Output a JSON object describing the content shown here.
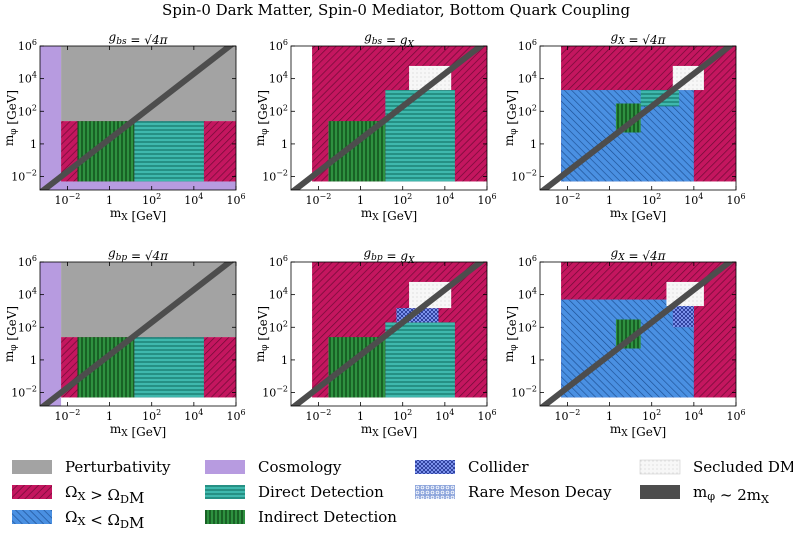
{
  "figure_title": "Spin-0 Dark Matter, Spin-0 Mediator, Bottom Quark Coupling",
  "colors": {
    "perturbativity": "#a3a3a3",
    "overabundant": "#c4165f",
    "overabundant_hatch": "#6e0a35",
    "underabundant": "#4a90e2",
    "underabundant_hatch": "#1d4f93",
    "cosmology": "#b79be0",
    "direct_detection": "#3fb8ad",
    "direct_detection_hatch": "#147568",
    "indirect_detection": "#2e9140",
    "indirect_detection_hatch": "#0e4d19",
    "collider": "#1c2e8c",
    "rare_meson": "#8ea6dc",
    "secluded": "#f4f4f4",
    "diagonal_line": "#4d4d4d"
  },
  "chart_data": [
    {
      "type": "area",
      "row": "top",
      "panel": 1,
      "title": "g_{bs} = √4π",
      "xlabel": "m_X [GeV]",
      "ylabel": "m_φ [GeV]",
      "xscale": "log",
      "yscale": "log",
      "xlim": [
        0.0005,
        1000000
      ],
      "ylim": [
        0.0015,
        1000000
      ],
      "x_ticks": [
        "10^-2",
        "1",
        "10^2",
        "10^4",
        "10^6"
      ],
      "y_ticks": [
        "10^-2",
        "1",
        "10^2",
        "10^4",
        "10^6"
      ],
      "regions": [
        {
          "name": "Perturbativity",
          "x_range": [
            0.005,
            1000000
          ],
          "y_range": [
            25,
            1000000
          ]
        },
        {
          "name": "Cosmology",
          "x_range": [
            0.0005,
            0.005
          ],
          "y_range": [
            0.0015,
            1000000
          ]
        },
        {
          "name": "Cosmology",
          "x_range": [
            0.0005,
            1000000
          ],
          "y_range": [
            0.0015,
            0.005
          ]
        },
        {
          "name": "Ω_X > Ω_DM",
          "x_range": [
            0.005,
            1000000
          ],
          "y_range": [
            0.005,
            25
          ]
        },
        {
          "name": "Indirect Detection",
          "x_range": [
            0.03,
            15
          ],
          "y_range": [
            0.005,
            25
          ]
        },
        {
          "name": "Direct Detection",
          "x_range": [
            15,
            30000
          ],
          "y_range": [
            0.005,
            25
          ]
        }
      ],
      "diagonal": "m_φ ~ 2m_X"
    },
    {
      "type": "area",
      "row": "top",
      "panel": 2,
      "title": "g_{bs} = g_X",
      "xlabel": "m_X [GeV]",
      "ylabel": "m_φ [GeV]",
      "xscale": "log",
      "yscale": "log",
      "xlim": [
        0.0005,
        1000000
      ],
      "ylim": [
        0.0015,
        1000000
      ],
      "x_ticks": [
        "10^-2",
        "1",
        "10^2",
        "10^4",
        "10^6"
      ],
      "y_ticks": [
        "10^-2",
        "1",
        "10^2",
        "10^4",
        "10^6"
      ],
      "regions": [
        {
          "name": "Ω_X > Ω_DM",
          "x_range": [
            0.005,
            1000000
          ],
          "y_range": [
            0.005,
            1000000
          ]
        },
        {
          "name": "Direct Detection",
          "x_range": [
            15,
            30000
          ],
          "y_range": [
            0.005,
            2000
          ]
        },
        {
          "name": "Indirect Detection",
          "x_range": [
            0.03,
            15
          ],
          "y_range": [
            0.005,
            25
          ]
        },
        {
          "name": "Secluded DM",
          "x_range": [
            200,
            20000
          ],
          "y_range": [
            2000,
            60000
          ]
        }
      ],
      "diagonal": "m_φ ~ 2m_X"
    },
    {
      "type": "area",
      "row": "top",
      "panel": 3,
      "title": "g_X = √4π",
      "xlabel": "m_X [GeV]",
      "ylabel": "m_φ [GeV]",
      "xscale": "log",
      "yscale": "log",
      "xlim": [
        0.0005,
        1000000
      ],
      "ylim": [
        0.0015,
        1000000
      ],
      "x_ticks": [
        "10^-2",
        "1",
        "10^2",
        "10^4",
        "10^6"
      ],
      "y_ticks": [
        "10^-2",
        "1",
        "10^2",
        "10^4",
        "10^6"
      ],
      "regions": [
        {
          "name": "Ω_X > Ω_DM",
          "x_range": [
            0.005,
            1000000
          ],
          "y_range": [
            0.005,
            1000000
          ]
        },
        {
          "name": "Ω_X < Ω_DM",
          "x_range": [
            0.005,
            10000
          ],
          "y_range": [
            0.005,
            2000
          ]
        },
        {
          "name": "Direct Detection",
          "x_range": [
            30,
            2000
          ],
          "y_range": [
            200,
            2000
          ]
        },
        {
          "name": "Indirect Detection",
          "x_range": [
            2,
            30
          ],
          "y_range": [
            5,
            300
          ]
        },
        {
          "name": "Secluded DM",
          "x_range": [
            1000,
            30000
          ],
          "y_range": [
            2000,
            60000
          ]
        }
      ],
      "diagonal": "m_φ ~ 2m_X"
    },
    {
      "type": "area",
      "row": "bottom",
      "panel": 1,
      "title": "g_{bp} = √4π",
      "xlabel": "m_X [GeV]",
      "ylabel": "m_φ [GeV]",
      "xscale": "log",
      "yscale": "log",
      "xlim": [
        0.0005,
        1000000
      ],
      "ylim": [
        0.0015,
        1000000
      ],
      "x_ticks": [
        "10^-2",
        "1",
        "10^2",
        "10^4",
        "10^6"
      ],
      "y_ticks": [
        "10^-2",
        "1",
        "10^2",
        "10^4",
        "10^6"
      ],
      "regions": [
        {
          "name": "Perturbativity",
          "x_range": [
            0.005,
            1000000
          ],
          "y_range": [
            25,
            1000000
          ]
        },
        {
          "name": "Cosmology",
          "x_range": [
            0.0005,
            0.005
          ],
          "y_range": [
            0.0015,
            1000000
          ]
        },
        {
          "name": "Ω_X > Ω_DM",
          "x_range": [
            0.005,
            1000000
          ],
          "y_range": [
            0.005,
            25
          ]
        },
        {
          "name": "Indirect Detection",
          "x_range": [
            0.03,
            15
          ],
          "y_range": [
            0.005,
            25
          ]
        },
        {
          "name": "Direct Detection",
          "x_range": [
            15,
            30000
          ],
          "y_range": [
            0.005,
            25
          ]
        }
      ],
      "diagonal": "m_φ ~ 2m_X"
    },
    {
      "type": "area",
      "row": "bottom",
      "panel": 2,
      "title": "g_{bp} = g_X",
      "xlabel": "m_X [GeV]",
      "ylabel": "m_φ [GeV]",
      "xscale": "log",
      "yscale": "log",
      "xlim": [
        0.0005,
        1000000
      ],
      "ylim": [
        0.0015,
        1000000
      ],
      "x_ticks": [
        "10^-2",
        "1",
        "10^2",
        "10^4",
        "10^6"
      ],
      "y_ticks": [
        "10^-2",
        "1",
        "10^2",
        "10^4",
        "10^6"
      ],
      "regions": [
        {
          "name": "Ω_X > Ω_DM",
          "x_range": [
            0.005,
            1000000
          ],
          "y_range": [
            0.005,
            1000000
          ]
        },
        {
          "name": "Direct Detection",
          "x_range": [
            15,
            30000
          ],
          "y_range": [
            0.005,
            200
          ]
        },
        {
          "name": "Indirect Detection",
          "x_range": [
            0.03,
            15
          ],
          "y_range": [
            0.005,
            25
          ]
        },
        {
          "name": "Collider",
          "x_range": [
            50,
            5000
          ],
          "y_range": [
            200,
            1500
          ]
        },
        {
          "name": "Secluded DM",
          "x_range": [
            200,
            20000
          ],
          "y_range": [
            1500,
            60000
          ]
        }
      ],
      "diagonal": "m_φ ~ 2m_X"
    },
    {
      "type": "area",
      "row": "bottom",
      "panel": 3,
      "title": "g_X = √4π",
      "xlabel": "m_X [GeV]",
      "ylabel": "m_φ [GeV]",
      "xscale": "log",
      "yscale": "log",
      "xlim": [
        0.0005,
        1000000
      ],
      "ylim": [
        0.0015,
        1000000
      ],
      "x_ticks": [
        "10^-2",
        "1",
        "10^2",
        "10^4",
        "10^6"
      ],
      "y_ticks": [
        "10^-2",
        "1",
        "10^2",
        "10^4",
        "10^6"
      ],
      "regions": [
        {
          "name": "Ω_X > Ω_DM",
          "x_range": [
            0.005,
            1000000
          ],
          "y_range": [
            0.005,
            1000000
          ]
        },
        {
          "name": "Ω_X < Ω_DM",
          "x_range": [
            0.005,
            10000
          ],
          "y_range": [
            0.005,
            5000
          ]
        },
        {
          "name": "Collider",
          "x_range": [
            1000,
            10000
          ],
          "y_range": [
            100,
            3000
          ]
        },
        {
          "name": "Indirect Detection",
          "x_range": [
            2,
            30
          ],
          "y_range": [
            5,
            300
          ]
        },
        {
          "name": "Secluded DM",
          "x_range": [
            500,
            30000
          ],
          "y_range": [
            2000,
            60000
          ]
        }
      ],
      "diagonal": "m_φ ~ 2m_X"
    }
  ],
  "legend": [
    {
      "label": "Perturbativity",
      "key": "perturbativity"
    },
    {
      "label": "Cosmology",
      "key": "cosmology"
    },
    {
      "label": "Collider",
      "key": "collider"
    },
    {
      "label": "Secluded DM",
      "key": "secluded"
    },
    {
      "label": "Ω_X > Ω_DM",
      "key": "overabundant"
    },
    {
      "label": "Direct Detection",
      "key": "direct_detection"
    },
    {
      "label": "Rare Meson Decay",
      "key": "rare_meson"
    },
    {
      "label": "m_φ ~ 2m_X",
      "key": "diagonal_line"
    },
    {
      "label": "Ω_X < Ω_DM",
      "key": "underabundant"
    },
    {
      "label": "Indirect Detection",
      "key": "indirect_detection"
    }
  ]
}
